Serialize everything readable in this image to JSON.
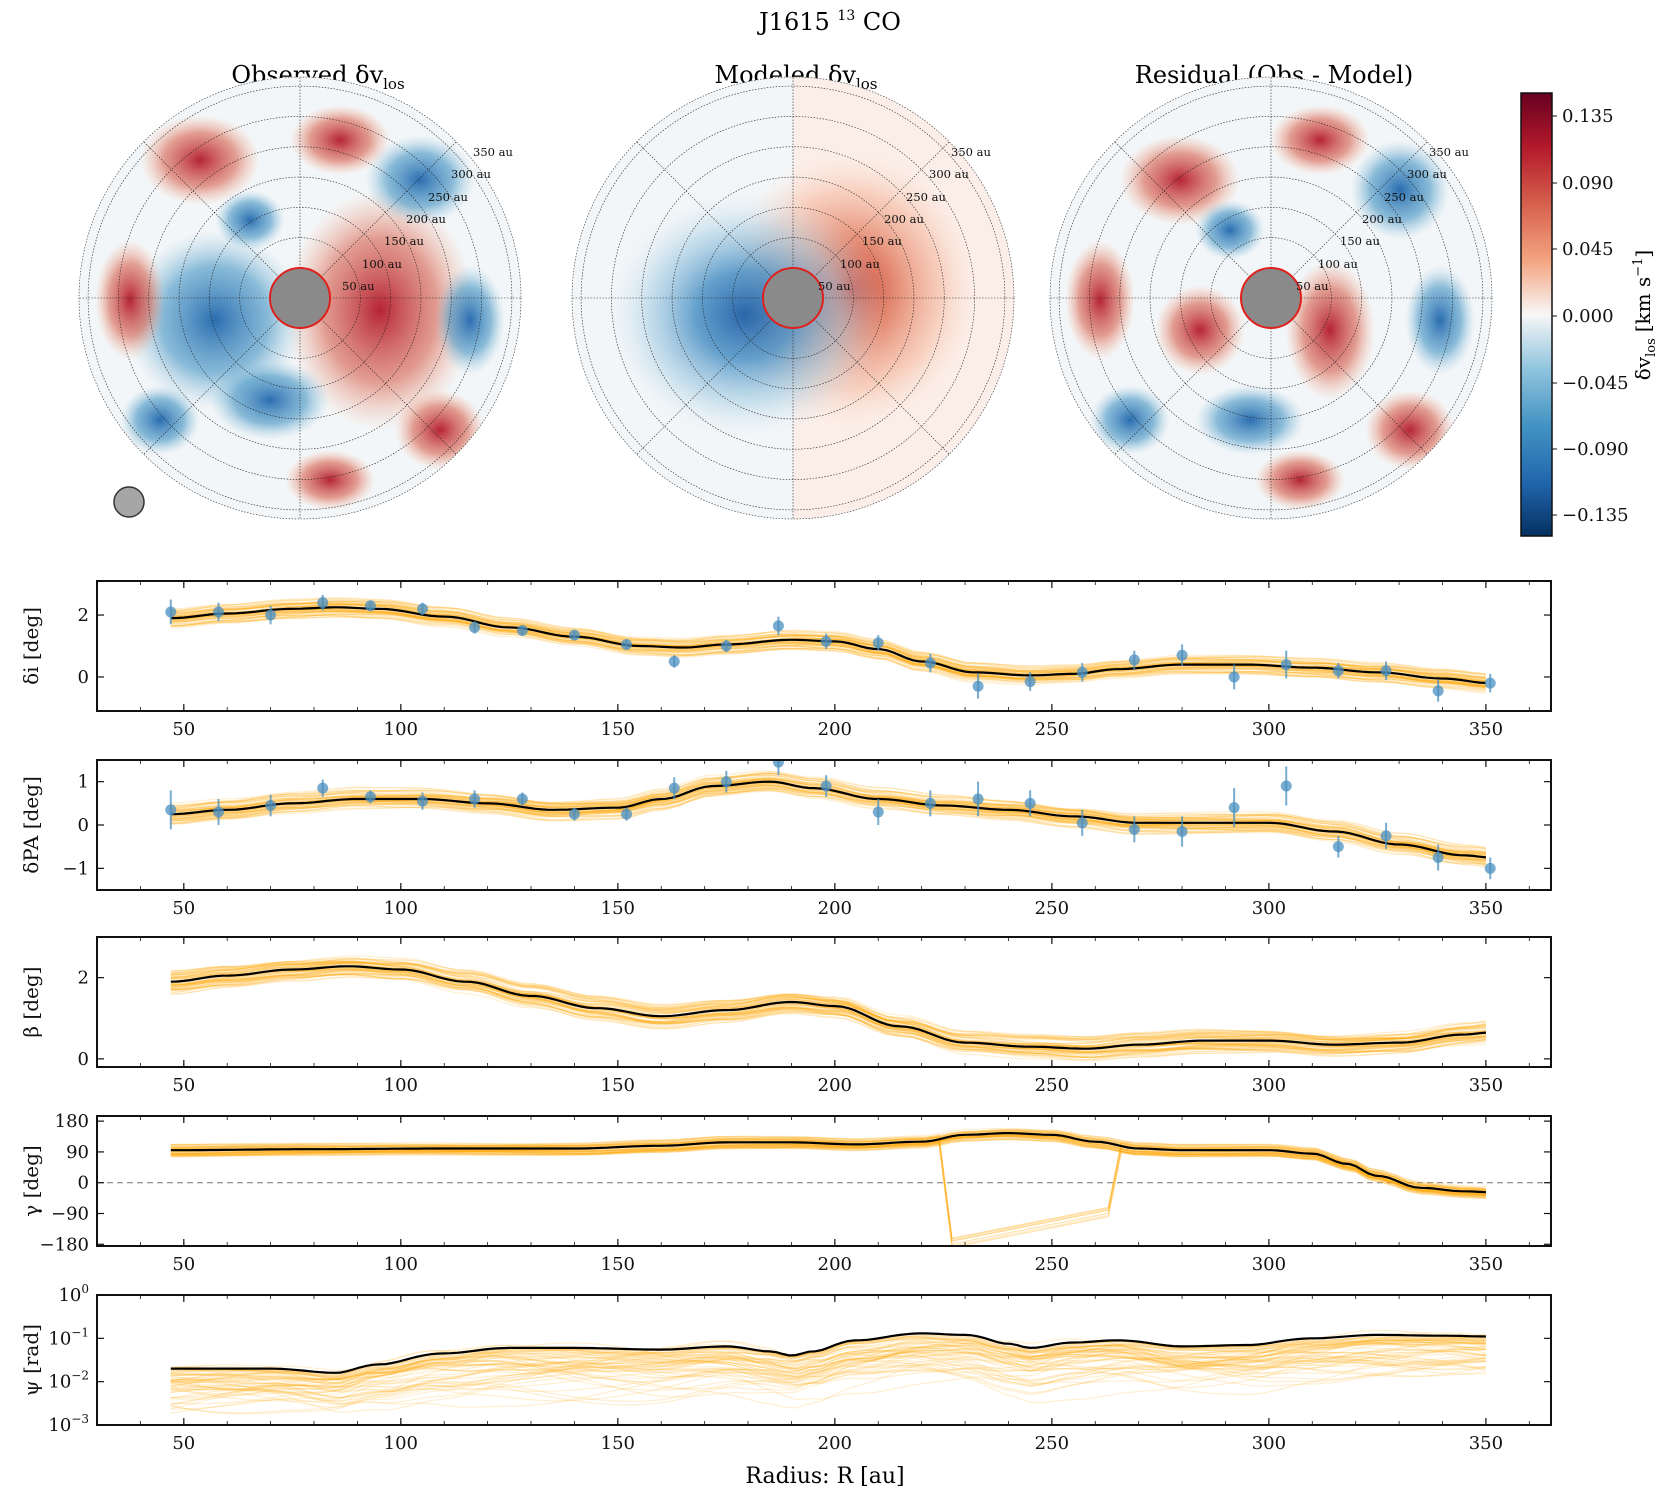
{
  "figure": {
    "title": "J1615",
    "title_isotope_sup": "13",
    "title_molecule": "CO"
  },
  "maps": [
    {
      "id": "observed",
      "title": "Observed δv",
      "title_sub": "los"
    },
    {
      "id": "modeled",
      "title": "Modeled δv",
      "title_sub": "los"
    },
    {
      "id": "residual",
      "title": "Residual (Obs - Model)",
      "title_sub": ""
    }
  ],
  "ring_labels": [
    "50 au",
    "100 au",
    "150 au",
    "200 au",
    "250 au",
    "300 au",
    "350 au"
  ],
  "colorbar": {
    "label": "δv",
    "label_sub": "los",
    "unit": "[km s",
    "unit_sup": "−1",
    "unit_end": "]",
    "ticks": [
      "0.135",
      "0.090",
      "0.045",
      "0.000",
      "−0.045",
      "−0.090",
      "−0.135"
    ],
    "range": [
      -0.16,
      0.16
    ]
  },
  "colors": {
    "model_line": "#000000",
    "samples": "#ffa500",
    "points": "#4a8fc0",
    "zero_line": "#777777",
    "inner_mask": "#888888",
    "inner_ring": "#e0201c"
  },
  "chart_data": [
    {
      "type": "line",
      "ylabel": "δi [deg]",
      "xlim": [
        30,
        365
      ],
      "ylim": [
        -1.1,
        3.1
      ],
      "yticks": [
        "0",
        "2"
      ],
      "xticks": [
        "50",
        "100",
        "150",
        "200",
        "250",
        "300",
        "350"
      ],
      "model": {
        "x": [
          47,
          60,
          75,
          85,
          95,
          110,
          125,
          140,
          155,
          165,
          175,
          190,
          200,
          210,
          220,
          232,
          245,
          255,
          265,
          280,
          295,
          310,
          325,
          340,
          351
        ],
        "y": [
          1.9,
          2.05,
          2.2,
          2.25,
          2.2,
          1.95,
          1.6,
          1.3,
          1.0,
          0.95,
          1.05,
          1.2,
          1.15,
          0.9,
          0.5,
          0.15,
          0.05,
          0.1,
          0.25,
          0.4,
          0.4,
          0.3,
          0.15,
          -0.05,
          -0.2
        ]
      },
      "points": {
        "x": [
          47,
          58,
          70,
          82,
          93,
          105,
          117,
          128,
          140,
          152,
          163,
          175,
          187,
          198,
          210,
          222,
          233,
          245,
          257,
          269,
          280,
          292,
          304,
          316,
          327,
          339,
          351
        ],
        "y": [
          2.1,
          2.1,
          2.0,
          2.4,
          2.3,
          2.2,
          1.6,
          1.5,
          1.35,
          1.05,
          0.5,
          1.0,
          1.65,
          1.15,
          1.1,
          0.45,
          -0.3,
          -0.15,
          0.15,
          0.55,
          0.7,
          0.0,
          0.4,
          0.2,
          0.2,
          -0.45,
          -0.2
        ],
        "err": [
          0.4,
          0.3,
          0.3,
          0.25,
          0.15,
          0.2,
          0.2,
          0.15,
          0.15,
          0.15,
          0.2,
          0.2,
          0.3,
          0.25,
          0.25,
          0.3,
          0.4,
          0.3,
          0.3,
          0.3,
          0.35,
          0.4,
          0.45,
          0.25,
          0.3,
          0.35,
          0.3
        ]
      },
      "band": 0.3
    },
    {
      "type": "line",
      "ylabel": "δPA [deg]",
      "xlim": [
        30,
        365
      ],
      "ylim": [
        -1.5,
        1.5
      ],
      "yticks": [
        "1",
        "0",
        "−1"
      ],
      "xticks": [
        "50",
        "100",
        "150",
        "200",
        "250",
        "300",
        "350"
      ],
      "model": {
        "x": [
          47,
          60,
          75,
          90,
          105,
          120,
          135,
          150,
          160,
          172,
          185,
          195,
          210,
          225,
          240,
          255,
          270,
          285,
          300,
          315,
          330,
          345,
          351
        ],
        "y": [
          0.25,
          0.35,
          0.5,
          0.6,
          0.6,
          0.5,
          0.35,
          0.4,
          0.6,
          0.9,
          1.0,
          0.85,
          0.6,
          0.45,
          0.35,
          0.2,
          0.05,
          0.05,
          0.05,
          -0.15,
          -0.45,
          -0.7,
          -0.75
        ]
      },
      "points": {
        "x": [
          47,
          58,
          70,
          82,
          93,
          105,
          117,
          128,
          140,
          152,
          163,
          175,
          187,
          198,
          210,
          222,
          233,
          245,
          257,
          269,
          280,
          292,
          304,
          316,
          327,
          339,
          351
        ],
        "y": [
          0.35,
          0.3,
          0.45,
          0.85,
          0.65,
          0.55,
          0.6,
          0.6,
          0.25,
          0.25,
          0.85,
          1.0,
          1.45,
          0.9,
          0.3,
          0.5,
          0.6,
          0.5,
          0.05,
          -0.1,
          -0.15,
          0.4,
          0.9,
          -0.5,
          -0.25,
          -0.75,
          -1.0
        ],
        "err": [
          0.45,
          0.3,
          0.25,
          0.2,
          0.15,
          0.2,
          0.2,
          0.15,
          0.15,
          0.15,
          0.25,
          0.25,
          0.3,
          0.25,
          0.3,
          0.3,
          0.4,
          0.3,
          0.3,
          0.3,
          0.35,
          0.45,
          0.45,
          0.25,
          0.3,
          0.3,
          0.25
        ]
      },
      "band": 0.25
    },
    {
      "type": "line",
      "ylabel": "β [deg]",
      "xlim": [
        30,
        365
      ],
      "ylim": [
        -0.2,
        3.0
      ],
      "yticks": [
        "2",
        "0"
      ],
      "xticks": [
        "50",
        "100",
        "150",
        "200",
        "250",
        "300",
        "350"
      ],
      "model": {
        "x": [
          47,
          60,
          75,
          88,
          100,
          115,
          130,
          145,
          160,
          175,
          190,
          200,
          215,
          230,
          245,
          258,
          270,
          285,
          300,
          315,
          330,
          345,
          351
        ],
        "y": [
          1.9,
          2.05,
          2.2,
          2.28,
          2.2,
          1.9,
          1.55,
          1.25,
          1.05,
          1.2,
          1.4,
          1.3,
          0.8,
          0.4,
          0.3,
          0.25,
          0.35,
          0.45,
          0.45,
          0.35,
          0.4,
          0.6,
          0.65
        ]
      },
      "band": 0.3
    },
    {
      "type": "line",
      "ylabel": "γ [deg]",
      "xlim": [
        30,
        365
      ],
      "ylim": [
        -185,
        195
      ],
      "yticks": [
        "180",
        "90",
        "0",
        "−90",
        "−180"
      ],
      "xticks": [
        "50",
        "100",
        "150",
        "200",
        "250",
        "300",
        "350"
      ],
      "zero_line": 0,
      "model": {
        "x": [
          47,
          80,
          110,
          140,
          160,
          175,
          190,
          205,
          220,
          230,
          240,
          250,
          260,
          270,
          280,
          290,
          300,
          310,
          318,
          325,
          335,
          345,
          351
        ],
        "y": [
          95,
          98,
          100,
          100,
          108,
          118,
          118,
          112,
          120,
          140,
          145,
          140,
          120,
          100,
          95,
          95,
          95,
          85,
          55,
          20,
          -15,
          -25,
          -28
        ]
      },
      "band": 18
    },
    {
      "type": "line",
      "ylabel": "ψ [rad]",
      "yscale": "log",
      "xlim": [
        30,
        365
      ],
      "ylim": [
        0.001,
        1.0
      ],
      "yticks": [
        "10^0",
        "10^−1",
        "10^−2",
        "10^−3"
      ],
      "xticks": [
        "50",
        "100",
        "150",
        "200",
        "250",
        "300",
        "350"
      ],
      "xlabel": "Radius: R [au]",
      "model": {
        "x": [
          47,
          70,
          85,
          95,
          110,
          125,
          140,
          160,
          175,
          185,
          190,
          195,
          205,
          220,
          230,
          240,
          245,
          255,
          265,
          280,
          295,
          310,
          325,
          340,
          351
        ],
        "y": [
          0.02,
          0.02,
          0.016,
          0.025,
          0.045,
          0.06,
          0.06,
          0.055,
          0.065,
          0.05,
          0.04,
          0.05,
          0.09,
          0.13,
          0.12,
          0.075,
          0.06,
          0.08,
          0.09,
          0.065,
          0.07,
          0.1,
          0.12,
          0.115,
          0.11
        ]
      }
    }
  ]
}
